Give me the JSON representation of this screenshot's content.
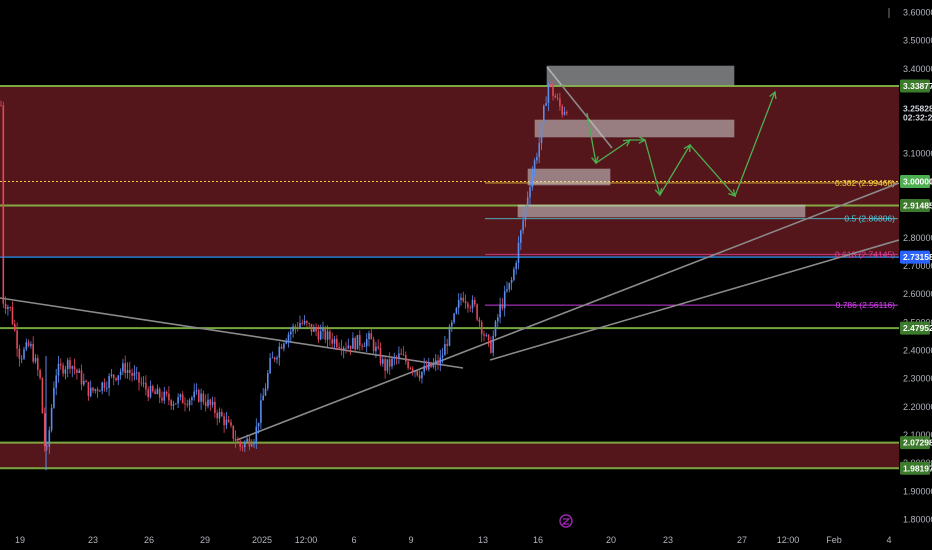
{
  "chart_data": {
    "type": "candlestick",
    "y_axis": {
      "ticks": [
        "1.80000",
        "1.90000",
        "2.00000",
        "2.10000",
        "2.20000",
        "2.30000",
        "2.40000",
        "2.50000",
        "2.60000",
        "2.70000",
        "2.80000",
        "3.00000",
        "3.10000",
        "3.40000",
        "3.50000",
        "3.60000"
      ],
      "range": [
        1.77,
        3.63
      ]
    },
    "x_axis": {
      "ticks": [
        "19",
        "23",
        "26",
        "29",
        "2025",
        "12:00",
        "6",
        "9",
        "13",
        "16",
        "20",
        "23",
        "27",
        "12:00",
        "Feb",
        "4"
      ]
    },
    "price_tags": [
      {
        "label": "3.33877",
        "value": 3.33877,
        "color": "#3c7a2c"
      },
      {
        "label": "3.25828",
        "value": 3.25828,
        "color": "#000000"
      },
      {
        "label": "02:32:27",
        "value": 3.228,
        "color": "#000000"
      },
      {
        "label": "3.00000",
        "value": 3.0,
        "color": "#4caf50"
      },
      {
        "label": "2.91485",
        "value": 2.91485,
        "color": "#3c7a2c"
      },
      {
        "label": "2.73158",
        "value": 2.73158,
        "color": "#2962ff"
      },
      {
        "label": "2.47952",
        "value": 2.47952,
        "color": "#3c7a2c"
      },
      {
        "label": "2.07298",
        "value": 2.07298,
        "color": "#3c7a2c"
      },
      {
        "label": "1.98197",
        "value": 1.98197,
        "color": "#3c7a2c"
      }
    ],
    "fib_levels": [
      {
        "label": "0.382 (2.99468)",
        "value": 2.99468,
        "color": "#f5d142"
      },
      {
        "label": "0.5 (2.86806)",
        "value": 2.86806,
        "color": "#4dd0e1"
      },
      {
        "label": "0.618 (2.74145)",
        "value": 2.74145,
        "color": "#e040a0"
      },
      {
        "label": "0.786 (2.56116)",
        "value": 2.56116,
        "color": "#e040fb"
      }
    ],
    "zones": [
      {
        "top": 3.33877,
        "bottom": 2.73158
      },
      {
        "top": 2.07298,
        "bottom": 1.98197
      }
    ],
    "hlines": [
      3.33877,
      2.91485,
      2.47952,
      2.07298,
      1.98197
    ],
    "candles": []
  }
}
